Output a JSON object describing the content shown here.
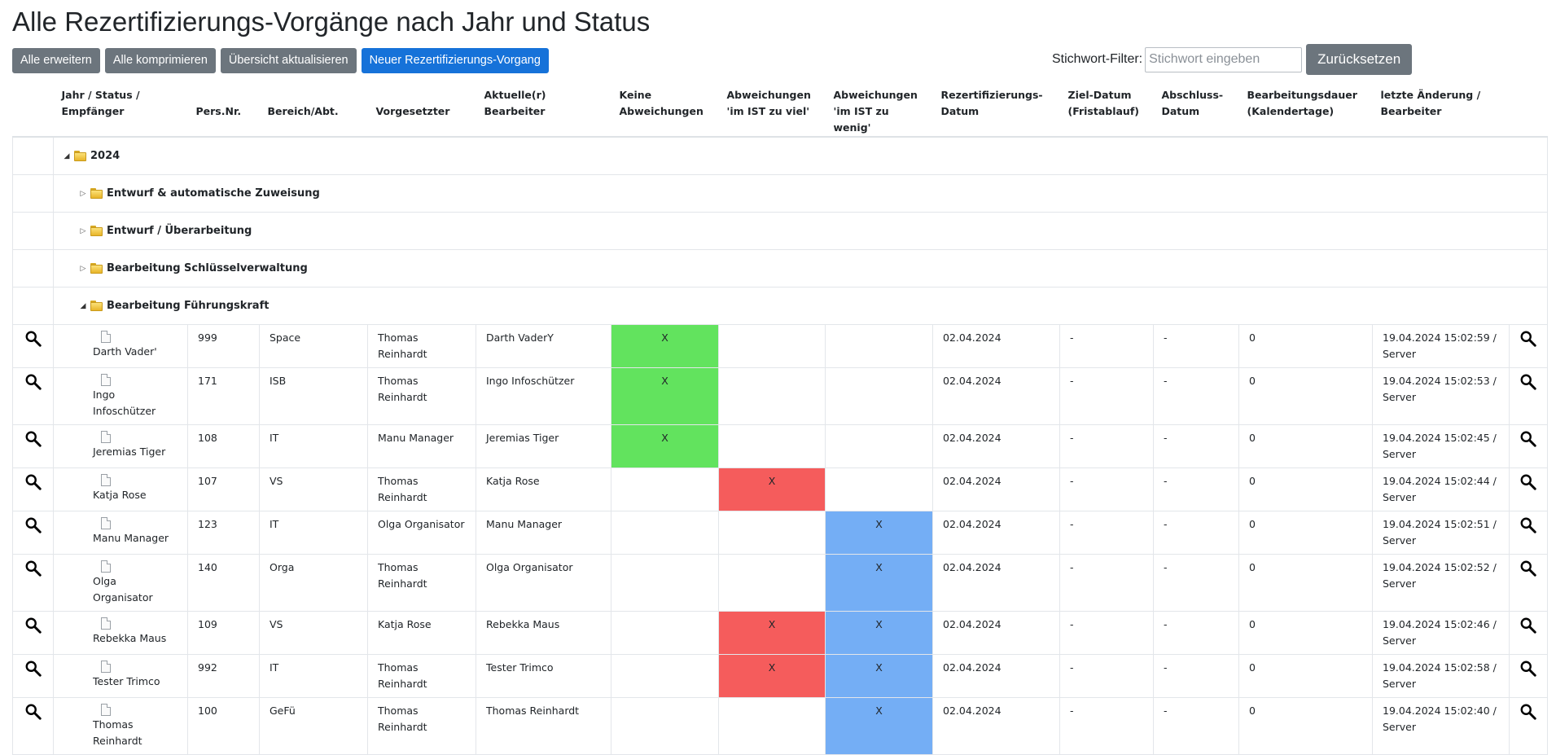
{
  "page": {
    "title": "Alle Rezertifizierungs-Vorgänge nach Jahr und Status"
  },
  "toolbar": {
    "expand_all": "Alle erweitern",
    "collapse_all": "Alle komprimieren",
    "refresh": "Übersicht aktualisieren",
    "new_process": "Neuer Rezertifizierungs-Vorgang"
  },
  "filter": {
    "label": "Stichwort-Filter:",
    "placeholder": "Stichwort eingeben",
    "value": "",
    "reset": "Zurücksetzen"
  },
  "colors": {
    "keine": "#62e35e",
    "zu_viel": "#f55c5c",
    "zu_wenig": "#74aef5",
    "primary_button": "#1672d9",
    "secondary_button": "#6c757d"
  },
  "columns": {
    "status_l1": "Jahr / Status /",
    "status_l2": "Empfänger",
    "persnr": "Pers.Nr.",
    "bereich": "Bereich/Abt.",
    "vorgesetzter": "Vorgesetzter",
    "bearbeiter_l1": "Aktuelle(r)",
    "bearbeiter_l2": "Bearbeiter",
    "keine_l1": "Keine",
    "keine_l2": "Abweichungen",
    "viel_l1": "Abweichungen",
    "viel_l2": "'im IST zu viel'",
    "wenig_l1": "Abweichungen",
    "wenig_l2": "'im IST zu wenig'",
    "rez_l1": "Rezertifizierungs-",
    "rez_l2": "Datum",
    "ziel_l1": "Ziel-Datum",
    "ziel_l2": "(Fristablauf)",
    "abschluss_l1": "Abschluss-",
    "abschluss_l2": "Datum",
    "dauer_l1": "Bearbeitungsdauer",
    "dauer_l2": "(Kalendertage)",
    "aend_l1": "letzte Änderung /",
    "aend_l2": "Bearbeiter"
  },
  "tree": {
    "year": "2024",
    "groups": [
      "Entwurf & automatische Zuweisung",
      "Entwurf / Überarbeitung",
      "Bearbeitung Schlüsselverwaltung",
      "Bearbeitung Führungskraft"
    ]
  },
  "rows": [
    {
      "name1": "Darth Vader'",
      "name2": "",
      "persnr": "999",
      "bereich": "Space",
      "vorgesetzter": "Thomas Reinhardt",
      "bearbeiter": "Darth VaderY",
      "keine": "X",
      "viel": "",
      "wenig": "",
      "rez": "02.04.2024",
      "ziel": "-",
      "abschluss": "-",
      "dauer": "0",
      "aend1": "19.04.2024 15:02:59 /",
      "aend2": "Server"
    },
    {
      "name1": "Ingo",
      "name2": "Infoschützer",
      "persnr": "171",
      "bereich": "ISB",
      "vorgesetzter": "Thomas Reinhardt",
      "bearbeiter": "Ingo Infoschützer",
      "keine": "X",
      "viel": "",
      "wenig": "",
      "rez": "02.04.2024",
      "ziel": "-",
      "abschluss": "-",
      "dauer": "0",
      "aend1": "19.04.2024 15:02:53 /",
      "aend2": "Server"
    },
    {
      "name1": "Jeremias Tiger",
      "name2": "",
      "persnr": "108",
      "bereich": "IT",
      "vorgesetzter": "Manu Manager",
      "bearbeiter": "Jeremias Tiger",
      "keine": "X",
      "viel": "",
      "wenig": "",
      "rez": "02.04.2024",
      "ziel": "-",
      "abschluss": "-",
      "dauer": "0",
      "aend1": "19.04.2024 15:02:45 /",
      "aend2": "Server"
    },
    {
      "name1": "Katja Rose",
      "name2": "",
      "persnr": "107",
      "bereich": "VS",
      "vorgesetzter": "Thomas Reinhardt",
      "bearbeiter": "Katja Rose",
      "keine": "",
      "viel": "X",
      "wenig": "",
      "rez": "02.04.2024",
      "ziel": "-",
      "abschluss": "-",
      "dauer": "0",
      "aend1": "19.04.2024 15:02:44 /",
      "aend2": "Server"
    },
    {
      "name1": "Manu Manager",
      "name2": "",
      "persnr": "123",
      "bereich": "IT",
      "vorgesetzter": "Olga Organisator",
      "bearbeiter": "Manu Manager",
      "keine": "",
      "viel": "",
      "wenig": "X",
      "rez": "02.04.2024",
      "ziel": "-",
      "abschluss": "-",
      "dauer": "0",
      "aend1": "19.04.2024 15:02:51 /",
      "aend2": "Server"
    },
    {
      "name1": "Olga",
      "name2": "Organisator",
      "persnr": "140",
      "bereich": "Orga",
      "vorgesetzter": "Thomas Reinhardt",
      "bearbeiter": "Olga Organisator",
      "keine": "",
      "viel": "",
      "wenig": "X",
      "rez": "02.04.2024",
      "ziel": "-",
      "abschluss": "-",
      "dauer": "0",
      "aend1": "19.04.2024 15:02:52 /",
      "aend2": "Server"
    },
    {
      "name1": "Rebekka Maus",
      "name2": "",
      "persnr": "109",
      "bereich": "VS",
      "vorgesetzter": "Katja Rose",
      "bearbeiter": "Rebekka Maus",
      "keine": "",
      "viel": "X",
      "wenig": "X",
      "rez": "02.04.2024",
      "ziel": "-",
      "abschluss": "-",
      "dauer": "0",
      "aend1": "19.04.2024 15:02:46 /",
      "aend2": "Server"
    },
    {
      "name1": "Tester Trimco",
      "name2": "",
      "persnr": "992",
      "bereich": "IT",
      "vorgesetzter": "Thomas Reinhardt",
      "bearbeiter": "Tester Trimco",
      "keine": "",
      "viel": "X",
      "wenig": "X",
      "rez": "02.04.2024",
      "ziel": "-",
      "abschluss": "-",
      "dauer": "0",
      "aend1": "19.04.2024 15:02:58 /",
      "aend2": "Server"
    },
    {
      "name1": "Thomas",
      "name2": "Reinhardt",
      "persnr": "100",
      "bereich": "GeFü",
      "vorgesetzter": "Thomas Reinhardt",
      "bearbeiter": "Thomas Reinhardt",
      "keine": "",
      "viel": "",
      "wenig": "X",
      "rez": "02.04.2024",
      "ziel": "-",
      "abschluss": "-",
      "dauer": "0",
      "aend1": "19.04.2024 15:02:40 /",
      "aend2": "Server"
    }
  ]
}
